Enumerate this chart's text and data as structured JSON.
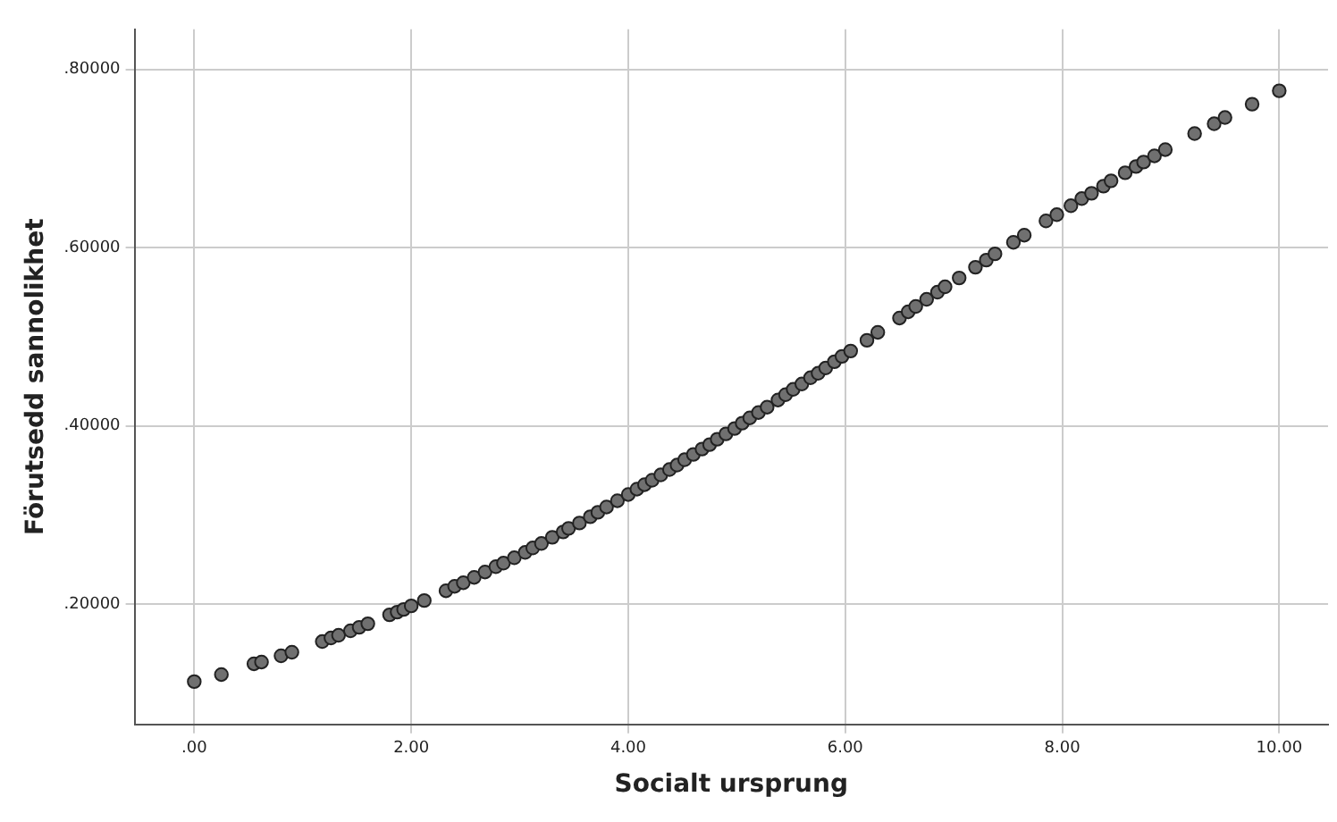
{
  "chart_data": {
    "type": "scatter",
    "xlabel": "Socialt ursprung",
    "ylabel": "Förutsedd sannolikhet",
    "xlim": [
      -0.55,
      10.45
    ],
    "ylim": [
      0.065,
      0.845
    ],
    "xticks": [
      {
        "value": 0,
        "label": ".00"
      },
      {
        "value": 2,
        "label": "2.00"
      },
      {
        "value": 4,
        "label": "4.00"
      },
      {
        "value": 6,
        "label": "6.00"
      },
      {
        "value": 8,
        "label": "8.00"
      },
      {
        "value": 10,
        "label": "10.00"
      }
    ],
    "yticks": [
      {
        "value": 0.2,
        "label": ".20000"
      },
      {
        "value": 0.4,
        "label": ".40000"
      },
      {
        "value": 0.6,
        "label": ".60000"
      },
      {
        "value": 0.8,
        "label": ".80000"
      }
    ],
    "grid": true,
    "marker": "circle",
    "series": [
      {
        "color": "#707070",
        "x": [
          0,
          0.25,
          0.55,
          0.62,
          0.8,
          0.9,
          1.18,
          1.26,
          1.33,
          1.44,
          1.52,
          1.6,
          1.8,
          1.87,
          1.93,
          2.0,
          2.12,
          2.32,
          2.4,
          2.48,
          2.58,
          2.68,
          2.78,
          2.85,
          2.95,
          3.05,
          3.12,
          3.2,
          3.3,
          3.4,
          3.45,
          3.55,
          3.65,
          3.72,
          3.8,
          3.9,
          4.0,
          4.08,
          4.15,
          4.22,
          4.3,
          4.38,
          4.45,
          4.52,
          4.6,
          4.68,
          4.75,
          4.82,
          4.9,
          4.98,
          5.05,
          5.12,
          5.2,
          5.28,
          5.38,
          5.45,
          5.52,
          5.6,
          5.68,
          5.75,
          5.82,
          5.9,
          5.97,
          6.05,
          6.2,
          6.3,
          6.5,
          6.58,
          6.65,
          6.75,
          6.85,
          6.92,
          7.05,
          7.2,
          7.3,
          7.38,
          7.55,
          7.65,
          7.85,
          7.95,
          8.08,
          8.18,
          8.27,
          8.38,
          8.45,
          8.58,
          8.68,
          8.75,
          8.85,
          8.95,
          9.22,
          9.4,
          9.5,
          9.75,
          10.0
        ],
        "values": [
          0.113,
          0.121,
          0.133,
          0.135,
          0.142,
          0.146,
          0.158,
          0.162,
          0.165,
          0.17,
          0.174,
          0.178,
          0.188,
          0.191,
          0.194,
          0.198,
          0.204,
          0.215,
          0.22,
          0.224,
          0.23,
          0.236,
          0.242,
          0.246,
          0.252,
          0.258,
          0.263,
          0.268,
          0.275,
          0.281,
          0.285,
          0.291,
          0.298,
          0.303,
          0.309,
          0.316,
          0.323,
          0.329,
          0.334,
          0.339,
          0.345,
          0.351,
          0.356,
          0.362,
          0.368,
          0.374,
          0.379,
          0.385,
          0.391,
          0.397,
          0.403,
          0.409,
          0.415,
          0.421,
          0.429,
          0.435,
          0.441,
          0.447,
          0.454,
          0.459,
          0.465,
          0.472,
          0.478,
          0.484,
          0.496,
          0.505,
          0.521,
          0.528,
          0.534,
          0.542,
          0.55,
          0.556,
          0.566,
          0.578,
          0.586,
          0.593,
          0.606,
          0.614,
          0.63,
          0.637,
          0.647,
          0.655,
          0.661,
          0.669,
          0.675,
          0.684,
          0.691,
          0.696,
          0.703,
          0.71,
          0.728,
          0.739,
          0.746,
          0.761,
          0.776
        ]
      }
    ]
  }
}
